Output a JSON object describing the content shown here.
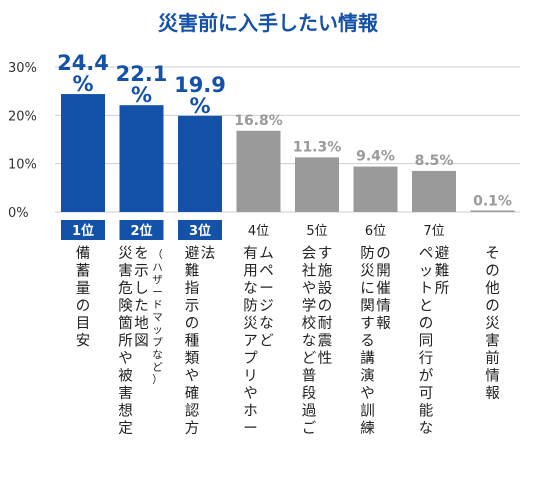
{
  "chart_data": {
    "type": "bar",
    "title": "災害前に入手したい情報",
    "ylim": [
      0,
      30
    ],
    "yticks": [
      "0%",
      "10%",
      "20%",
      "30%"
    ],
    "grid": true,
    "highlight_color": "#1451a8",
    "other_color": "#9a9a9a",
    "label_highlight_color": "#1451a8",
    "label_other_color": "#9a9a9a",
    "title_color": "#1451a8",
    "categories": [
      {
        "rank": "1位",
        "label": "備蓄量の目安",
        "note": "",
        "value": 24.4,
        "value_label": "24.4%",
        "highlight": true
      },
      {
        "rank": "2位",
        "label": "災害危険箇所や被害想定を示した地図",
        "note": "（ハザードマップなど）",
        "value": 22.1,
        "value_label": "22.1%",
        "highlight": true
      },
      {
        "rank": "3位",
        "label": "避難指示の種類や確認方法",
        "note": "",
        "value": 19.9,
        "value_label": "19.9%",
        "highlight": true
      },
      {
        "rank": "4位",
        "label": "有用な防災アプリやホームページなど",
        "note": "",
        "value": 16.8,
        "value_label": "16.8%",
        "highlight": false
      },
      {
        "rank": "5位",
        "label": "会社や学校など普段過ごす施設の耐震性",
        "note": "",
        "value": 11.3,
        "value_label": "11.3%",
        "highlight": false
      },
      {
        "rank": "6位",
        "label": "防災に関する講演や訓練の開催情報",
        "note": "",
        "value": 9.4,
        "value_label": "9.4%",
        "highlight": false
      },
      {
        "rank": "7位",
        "label": "ペットとの同行が可能な避難所",
        "note": "",
        "value": 8.5,
        "value_label": "8.5%",
        "highlight": false
      },
      {
        "rank": "",
        "label": "その他の災害前情報",
        "note": "",
        "value": 0.1,
        "value_label": "0.1%",
        "highlight": false
      }
    ]
  }
}
